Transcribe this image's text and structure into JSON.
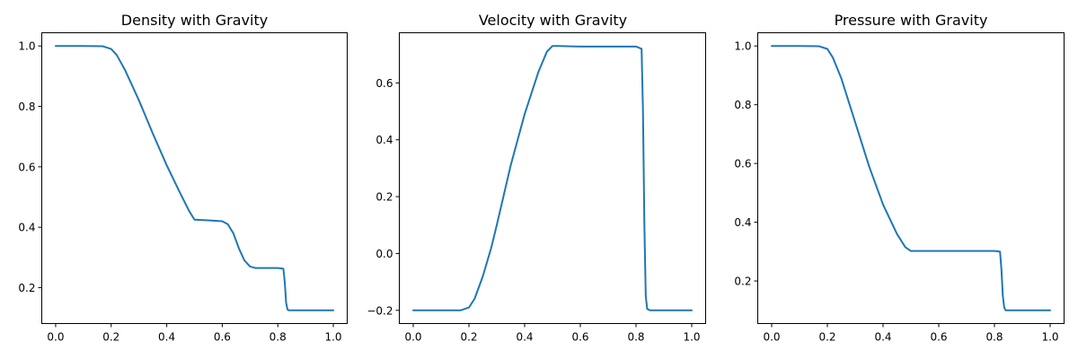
{
  "chart_data": [
    {
      "type": "line",
      "title": "Density with Gravity",
      "xlabel": "",
      "ylabel": "",
      "xlim": [
        -0.05,
        1.05
      ],
      "ylim": [
        0.0813,
        1.0437
      ],
      "xticks": [
        0.0,
        0.2,
        0.4,
        0.6,
        0.8,
        1.0
      ],
      "xtick_labels": [
        "0.0",
        "0.2",
        "0.4",
        "0.6",
        "0.8",
        "1.0"
      ],
      "yticks": [
        0.2,
        0.4,
        0.6,
        0.8,
        1.0
      ],
      "ytick_labels": [
        "0.2",
        "0.4",
        "0.6",
        "0.8",
        "1.0"
      ],
      "grid": false,
      "color": "#1f77b4",
      "series": [
        {
          "x": [
            0.0,
            0.1,
            0.17,
            0.2,
            0.22,
            0.25,
            0.3,
            0.35,
            0.4,
            0.45,
            0.48,
            0.5,
            0.55,
            0.6,
            0.62,
            0.64,
            0.66,
            0.68,
            0.7,
            0.72,
            0.8,
            0.82,
            0.825,
            0.83,
            0.835,
            0.84,
            0.85,
            0.9,
            1.0
          ],
          "y": [
            1.0,
            1.0,
            0.999,
            0.99,
            0.97,
            0.92,
            0.82,
            0.71,
            0.605,
            0.51,
            0.455,
            0.425,
            0.423,
            0.42,
            0.41,
            0.38,
            0.33,
            0.29,
            0.27,
            0.265,
            0.265,
            0.263,
            0.22,
            0.15,
            0.128,
            0.125,
            0.125,
            0.125,
            0.125
          ]
        }
      ]
    },
    {
      "type": "line",
      "title": "Velocity with Gravity",
      "xlabel": "",
      "ylabel": "",
      "xlim": [
        -0.05,
        1.05
      ],
      "ylim": [
        -0.2465,
        0.7765
      ],
      "xticks": [
        0.0,
        0.2,
        0.4,
        0.6,
        0.8,
        1.0
      ],
      "xtick_labels": [
        "0.0",
        "0.2",
        "0.4",
        "0.6",
        "0.8",
        "1.0"
      ],
      "yticks": [
        -0.2,
        0.0,
        0.2,
        0.4,
        0.6
      ],
      "ytick_labels": [
        "−0.2",
        "0.0",
        "0.2",
        "0.4",
        "0.6"
      ],
      "grid": false,
      "color": "#1f77b4",
      "series": [
        {
          "x": [
            0.0,
            0.1,
            0.17,
            0.2,
            0.22,
            0.25,
            0.28,
            0.3,
            0.35,
            0.4,
            0.45,
            0.48,
            0.5,
            0.52,
            0.6,
            0.7,
            0.8,
            0.82,
            0.825,
            0.83,
            0.835,
            0.84,
            0.85,
            0.9,
            1.0
          ],
          "y": [
            -0.2,
            -0.2,
            -0.2,
            -0.19,
            -0.16,
            -0.08,
            0.02,
            0.1,
            0.31,
            0.49,
            0.64,
            0.71,
            0.73,
            0.73,
            0.728,
            0.728,
            0.728,
            0.72,
            0.5,
            0.1,
            -0.15,
            -0.195,
            -0.2,
            -0.2,
            -0.2
          ]
        }
      ]
    },
    {
      "type": "line",
      "title": "Pressure with Gravity",
      "xlabel": "",
      "ylabel": "",
      "xlim": [
        -0.05,
        1.05
      ],
      "ylim": [
        0.055,
        1.045
      ],
      "xticks": [
        0.0,
        0.2,
        0.4,
        0.6,
        0.8,
        1.0
      ],
      "xtick_labels": [
        "0.0",
        "0.2",
        "0.4",
        "0.6",
        "0.8",
        "1.0"
      ],
      "yticks": [
        0.2,
        0.4,
        0.6,
        0.8,
        1.0
      ],
      "ytick_labels": [
        "0.2",
        "0.4",
        "0.6",
        "0.8",
        "1.0"
      ],
      "grid": false,
      "color": "#1f77b4",
      "series": [
        {
          "x": [
            0.0,
            0.1,
            0.17,
            0.2,
            0.22,
            0.25,
            0.3,
            0.35,
            0.4,
            0.45,
            0.48,
            0.5,
            0.52,
            0.6,
            0.7,
            0.8,
            0.82,
            0.825,
            0.83,
            0.835,
            0.84,
            0.85,
            0.9,
            1.0
          ],
          "y": [
            1.0,
            1.0,
            0.999,
            0.99,
            0.96,
            0.89,
            0.74,
            0.59,
            0.46,
            0.36,
            0.315,
            0.302,
            0.302,
            0.302,
            0.302,
            0.302,
            0.3,
            0.24,
            0.15,
            0.11,
            0.1,
            0.1,
            0.1,
            0.1
          ]
        }
      ]
    }
  ]
}
